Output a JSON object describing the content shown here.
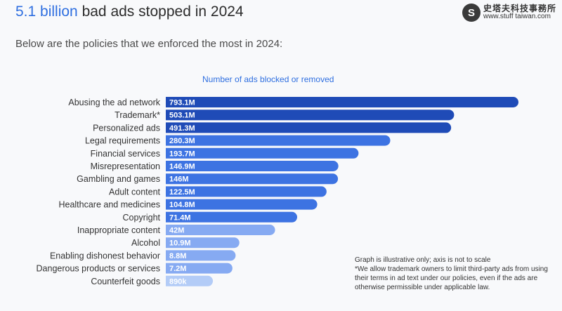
{
  "header": {
    "title_highlight": "5.1 billion",
    "title_rest": "bad ads stopped in 2024",
    "subtitle": "Below are the policies that we enforced the most in 2024:"
  },
  "watermark": {
    "logo": "S",
    "name": "史塔夫科技事務所",
    "url": "www.stuff taiwan.com"
  },
  "notes": {
    "line1": "Graph is illustrative only; axis is not to scale",
    "line2": "*We allow trademark owners to limit third-party ads from using their terms in ad text under our policies, even if the ads are otherwise permissible under applicable law."
  },
  "colors": {
    "title_highlight": "#2f6fe0",
    "dark_bar": "#1f4bb7",
    "mid_bar": "#3d73e2",
    "light_bar": "#86aaf2",
    "pale_bar": "#b3ccf7",
    "bar_label": "#ffffff"
  },
  "chart_data": {
    "type": "bar",
    "orientation": "horizontal",
    "title": "Number of ads blocked or removed",
    "categories": [
      "Abusing the ad network",
      "Trademark*",
      "Personalized ads",
      "Legal requirements",
      "Financial services",
      "Misrepresentation",
      "Gambling and games",
      "Adult content",
      "Healthcare and medicines",
      "Copyright",
      "Inappropriate content",
      "Alcohol",
      "Enabling dishonest behavior",
      "Dangerous products or services",
      "Counterfeit goods"
    ],
    "values": [
      793.1,
      503.1,
      491.3,
      280.3,
      193.7,
      146.9,
      146,
      122.5,
      104.8,
      71.4,
      42,
      10.9,
      8.8,
      7.2,
      0.89
    ],
    "value_labels": [
      "793.1M",
      "503.1M",
      "491.3M",
      "280.3M",
      "193.7M",
      "146.9M",
      "146M",
      "122.5M",
      "104.8M",
      "71.4M",
      "42M",
      "10.9M",
      "8.8M",
      "7.2M",
      "890k"
    ],
    "unit": "millions of ads",
    "scale": "illustrative, not to scale",
    "grid": false,
    "legend": "none"
  }
}
